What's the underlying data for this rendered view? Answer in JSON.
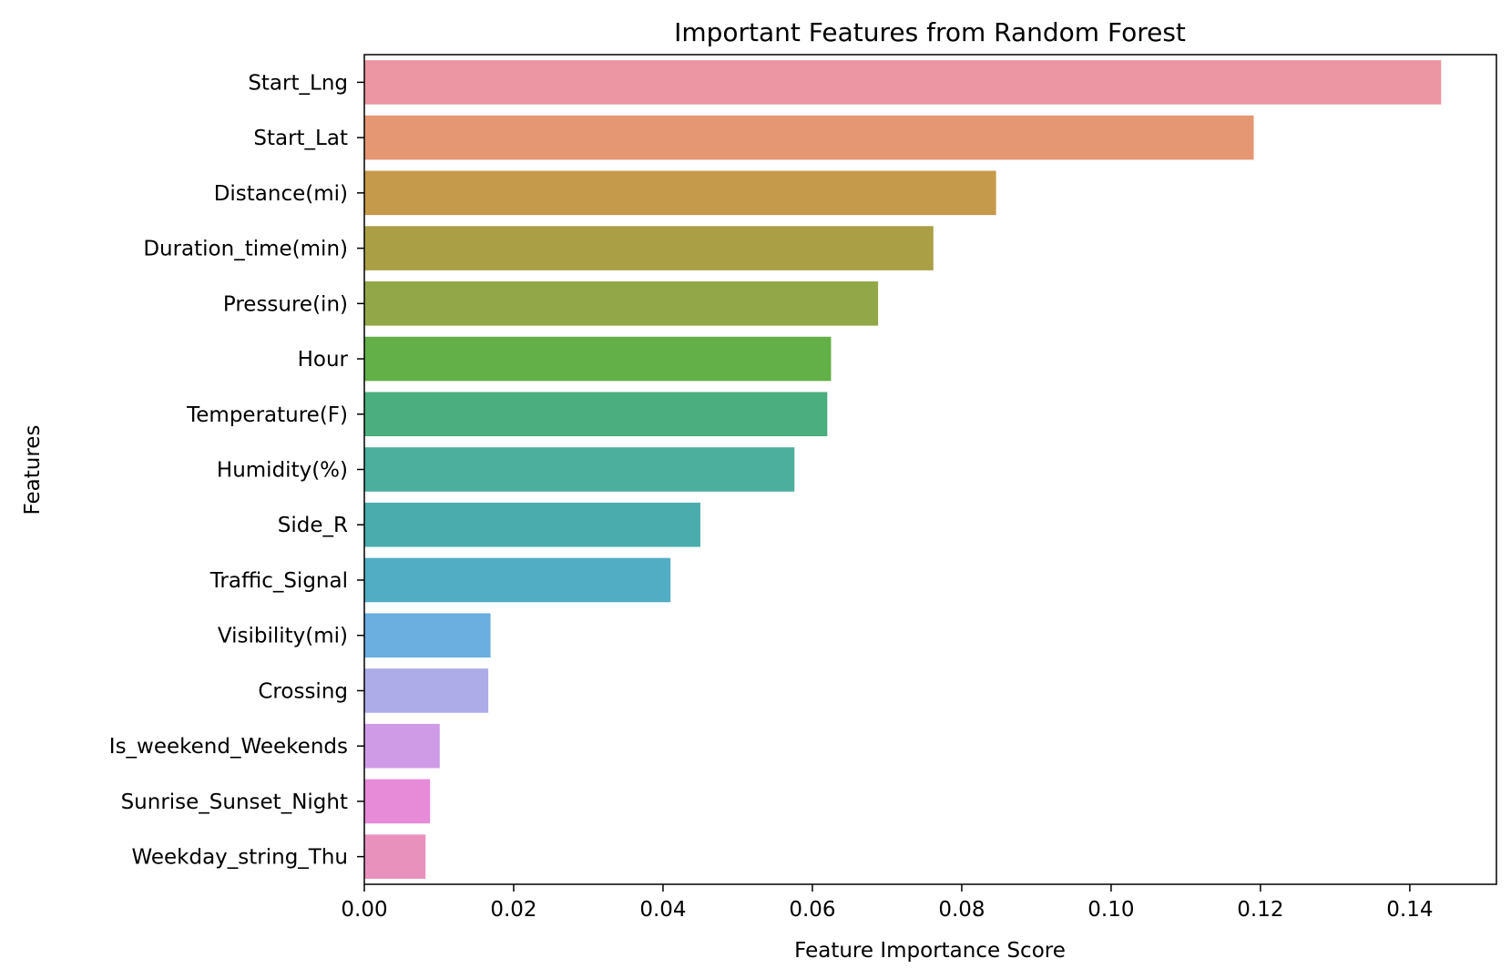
{
  "chart_data": {
    "type": "bar",
    "orientation": "horizontal",
    "title": "Important Features from Random Forest",
    "xlabel": "Feature Importance Score",
    "ylabel": "Features",
    "xlim": [
      0,
      0.1516
    ],
    "xticks": [
      "0.00",
      "0.02",
      "0.04",
      "0.06",
      "0.08",
      "0.10",
      "0.12",
      "0.14"
    ],
    "grid": false,
    "categories": [
      "Start_Lng",
      "Start_Lat",
      "Distance(mi)",
      "Duration_time(min)",
      "Pressure(in)",
      "Hour",
      "Temperature(F)",
      "Humidity(%)",
      "Side_R",
      "Traffic_Signal",
      "Visibility(mi)",
      "Crossing",
      "Is_weekend_Weekends",
      "Sunrise_Sunset_Night",
      "Weekday_string_Thu"
    ],
    "values": [
      0.1442,
      0.1191,
      0.0846,
      0.0762,
      0.0688,
      0.0625,
      0.062,
      0.0576,
      0.045,
      0.041,
      0.0169,
      0.0166,
      0.0101,
      0.0088,
      0.0082
    ],
    "colors": [
      "#eb96a2",
      "#e59672",
      "#c69a4b",
      "#aa9f45",
      "#92a748",
      "#62b047",
      "#4bae7f",
      "#4cae9c",
      "#4aacad",
      "#50adc4",
      "#6baee0",
      "#aeabe9",
      "#d09be6",
      "#e78ad8",
      "#e891bd"
    ]
  }
}
